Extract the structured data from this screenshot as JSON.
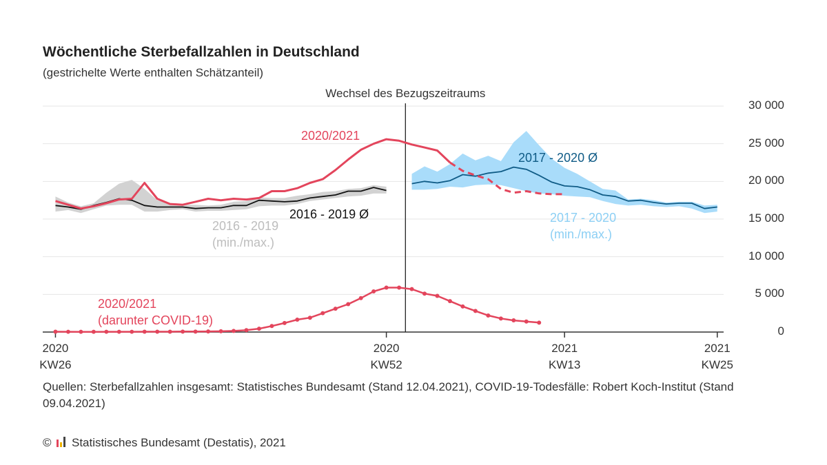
{
  "chart_data": {
    "type": "line",
    "title": "Wöchentliche Sterbefallzahlen in Deutschland",
    "subtitle": "(gestrichelte Werte enthalten Schätzanteil)",
    "x": [
      0,
      1,
      2,
      3,
      4,
      5,
      6,
      7,
      8,
      9,
      10,
      11,
      12,
      13,
      14,
      15,
      16,
      17,
      18,
      19,
      20,
      21,
      22,
      23,
      24,
      25,
      26,
      27,
      28,
      29,
      30,
      31,
      32,
      33,
      34,
      35,
      36,
      37,
      38,
      39,
      40,
      41,
      42,
      43,
      44,
      45,
      46,
      47,
      48,
      49,
      50,
      51,
      52
    ],
    "xlim": [
      -1,
      52.5
    ],
    "xticks": [
      {
        "value": 0,
        "label": "2020\nKW26"
      },
      {
        "value": 26,
        "label": "2020\nKW52"
      },
      {
        "value": 40,
        "label": "2021\nKW13"
      },
      {
        "value": 52,
        "label": "2021\nKW25"
      }
    ],
    "ylim": [
      0,
      30000
    ],
    "yticks": [
      0,
      {
        "value": 5000,
        "label": "5 000"
      },
      {
        "value": 10000,
        "label": "10 000"
      },
      {
        "value": 15000,
        "label": "15 000"
      },
      {
        "value": 20000,
        "label": "20 000"
      },
      {
        "value": 25000,
        "label": "25 000"
      },
      {
        "value": 30000,
        "label": "30 000"
      }
    ],
    "grid": true,
    "reference_line": {
      "x": 27.5,
      "label": "Wechsel des Bezugszeitraums"
    },
    "series": [
      {
        "name": "2016 - 2019\n(min./max.)",
        "kind": "band",
        "color": "#d2d2d2",
        "label_color": "#bdbdbd",
        "low": [
          16000,
          16200,
          15800,
          16300,
          16800,
          16900,
          16900,
          16000,
          16000,
          16200,
          16300,
          16000,
          16100,
          16100,
          16200,
          16300,
          16700,
          16800,
          16800,
          17000,
          17400,
          17600,
          17800,
          18000,
          18100,
          18400,
          18400,
          null,
          null,
          null,
          null,
          null,
          null,
          null,
          null,
          null,
          null,
          null,
          null,
          null,
          null,
          null,
          null,
          null,
          null,
          null,
          null,
          null,
          null,
          null,
          null,
          null,
          null
        ],
        "high": [
          18000,
          17200,
          16700,
          17100,
          18500,
          19700,
          20200,
          19000,
          17500,
          17000,
          16900,
          16900,
          16800,
          16900,
          17300,
          17400,
          17900,
          17800,
          17800,
          18100,
          18300,
          18600,
          18700,
          19000,
          19100,
          19500,
          19300,
          null,
          null,
          null,
          null,
          null,
          null,
          null,
          null,
          null,
          null,
          null,
          null,
          null,
          null,
          null,
          null,
          null,
          null,
          null,
          null,
          null,
          null,
          null,
          null,
          null,
          null
        ]
      },
      {
        "name": "2016 - 2019 Ø",
        "kind": "line",
        "color": "#111111",
        "label_color": "#111111",
        "values": [
          16800,
          16600,
          16300,
          16800,
          17200,
          17700,
          17500,
          16800,
          16600,
          16600,
          16600,
          16400,
          16500,
          16500,
          16800,
          16800,
          17500,
          17400,
          17300,
          17400,
          17800,
          18000,
          18200,
          18700,
          18700,
          19200,
          18800,
          null,
          null,
          null,
          null,
          null,
          null,
          null,
          null,
          null,
          null,
          null,
          null,
          null,
          null,
          null,
          null,
          null,
          null,
          null,
          null,
          null,
          null,
          null,
          null,
          null,
          null
        ]
      },
      {
        "name": "2017 - 2020\n(min./max.)",
        "kind": "band",
        "color": "#a9dcfa",
        "label_color": "#8ccff4",
        "low": [
          null,
          null,
          null,
          null,
          null,
          null,
          null,
          null,
          null,
          null,
          null,
          null,
          null,
          null,
          null,
          null,
          null,
          null,
          null,
          null,
          null,
          null,
          null,
          null,
          null,
          null,
          null,
          null,
          18900,
          18900,
          19000,
          19300,
          19200,
          19500,
          19600,
          19500,
          19100,
          18700,
          18400,
          18300,
          18100,
          18000,
          17900,
          17400,
          17000,
          16800,
          16900,
          16700,
          16600,
          16700,
          16400,
          15800,
          16000
        ],
        "high": [
          null,
          null,
          null,
          null,
          null,
          null,
          null,
          null,
          null,
          null,
          null,
          null,
          null,
          null,
          null,
          null,
          null,
          null,
          null,
          null,
          null,
          null,
          null,
          null,
          null,
          null,
          null,
          null,
          21000,
          22000,
          21300,
          22300,
          23700,
          22800,
          23400,
          22700,
          25200,
          26700,
          24800,
          23000,
          21800,
          21000,
          20000,
          19000,
          18800,
          17600,
          17700,
          17500,
          17200,
          17300,
          17300,
          16800,
          16900
        ]
      },
      {
        "name": "2017 - 2020 Ø",
        "kind": "line",
        "color": "#0f5b86",
        "label_color": "#0f5b86",
        "values": [
          null,
          null,
          null,
          null,
          null,
          null,
          null,
          null,
          null,
          null,
          null,
          null,
          null,
          null,
          null,
          null,
          null,
          null,
          null,
          null,
          null,
          null,
          null,
          null,
          null,
          null,
          null,
          null,
          19700,
          20000,
          19800,
          20100,
          20900,
          20700,
          21100,
          21300,
          21900,
          21600,
          20800,
          19900,
          19400,
          19300,
          18900,
          18200,
          18000,
          17400,
          17500,
          17200,
          17000,
          17100,
          17100,
          16400,
          16600
        ]
      },
      {
        "name": "2020/2021",
        "kind": "line",
        "color": "#e3455c",
        "label_color": "#e3455c",
        "values": [
          17400,
          16900,
          16400,
          16700,
          17100,
          17600,
          17700,
          19800,
          17700,
          17000,
          16900,
          17300,
          17700,
          17500,
          17700,
          17600,
          17800,
          18700,
          18700,
          19100,
          19800,
          20300,
          21500,
          22900,
          24200,
          25000,
          25600,
          25400,
          24900,
          24500,
          24100,
          22500,
          null,
          null,
          null,
          null,
          null,
          null,
          null,
          null,
          null,
          null,
          null,
          null,
          null,
          null,
          null,
          null,
          null,
          null,
          null,
          null,
          null
        ],
        "estimated_values": [
          null,
          null,
          null,
          null,
          null,
          null,
          null,
          null,
          null,
          null,
          null,
          null,
          null,
          null,
          null,
          null,
          null,
          null,
          null,
          null,
          null,
          null,
          null,
          null,
          null,
          null,
          null,
          null,
          null,
          null,
          null,
          22500,
          21400,
          20800,
          20300,
          19000,
          18500,
          18700,
          18400,
          18300,
          18300,
          null,
          null,
          null,
          null,
          null,
          null,
          null,
          null,
          null,
          null,
          null,
          null
        ]
      },
      {
        "name": "2020/2021\n(darunter COVID-19)",
        "kind": "dots",
        "color": "#e3455c",
        "label_color": "#e3455c",
        "values": [
          50,
          40,
          30,
          30,
          40,
          40,
          40,
          50,
          50,
          50,
          60,
          60,
          80,
          100,
          150,
          250,
          450,
          800,
          1200,
          1650,
          1900,
          2500,
          3100,
          3700,
          4500,
          5400,
          5900,
          5900,
          5700,
          5100,
          4800,
          4100,
          3400,
          2800,
          2200,
          1800,
          1550,
          1400,
          1250,
          null,
          null,
          null,
          null,
          null,
          null,
          null,
          null,
          null,
          null,
          null,
          null,
          null,
          null
        ]
      }
    ],
    "sources": "Quellen: Sterbefallzahlen insgesamt: Statistisches Bundesamt (Stand 12.04.2021), COVID-19-Todesfälle: Robert Koch-Institut (Stand 09.04.2021)",
    "copyright": "©",
    "credit": "Statistisches Bundesamt (Destatis), 2021"
  }
}
